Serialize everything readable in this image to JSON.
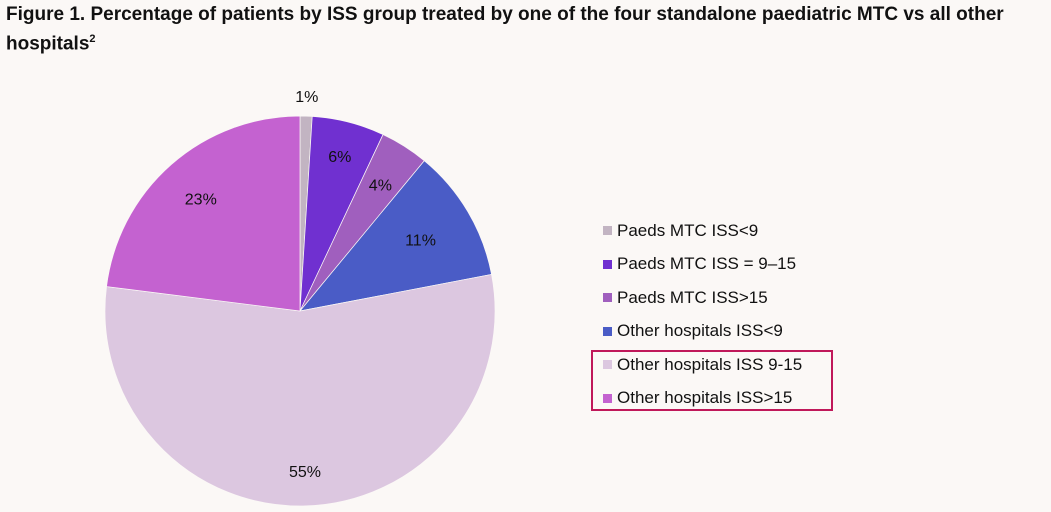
{
  "title": "Figure 1. Percentage of patients by ISS group treated by one of the four standalone paediatric MTC vs all other hospitals",
  "title_superscript": "2",
  "highlight_color": "#c0185a",
  "highlighted_legend_entries": [
    "Other hospitals ISS 9-15",
    "Other hospitals ISS>15"
  ],
  "chart_data": {
    "type": "pie",
    "start": "top, clockwise",
    "legend_position": "right",
    "slices": [
      {
        "name": "Paeds MTC ISS<9",
        "value": 1,
        "label": "1%",
        "color": "#c2b4c2"
      },
      {
        "name": "Paeds MTC ISS = 9–15",
        "value": 6,
        "label": "6%",
        "color": "#7030d0"
      },
      {
        "name": "Paeds MTC ISS>15",
        "value": 4,
        "label": "4%",
        "color": "#a05fbe"
      },
      {
        "name": "Other hospitals ISS<9",
        "value": 11,
        "label": "11%",
        "color": "#4a5cc6"
      },
      {
        "name": "Other hospitals ISS 9-15",
        "value": 55,
        "label": "55%",
        "color": "#dcc7e0"
      },
      {
        "name": "Other hospitals ISS>15",
        "value": 23,
        "label": "23%",
        "color": "#c462d0"
      }
    ]
  }
}
